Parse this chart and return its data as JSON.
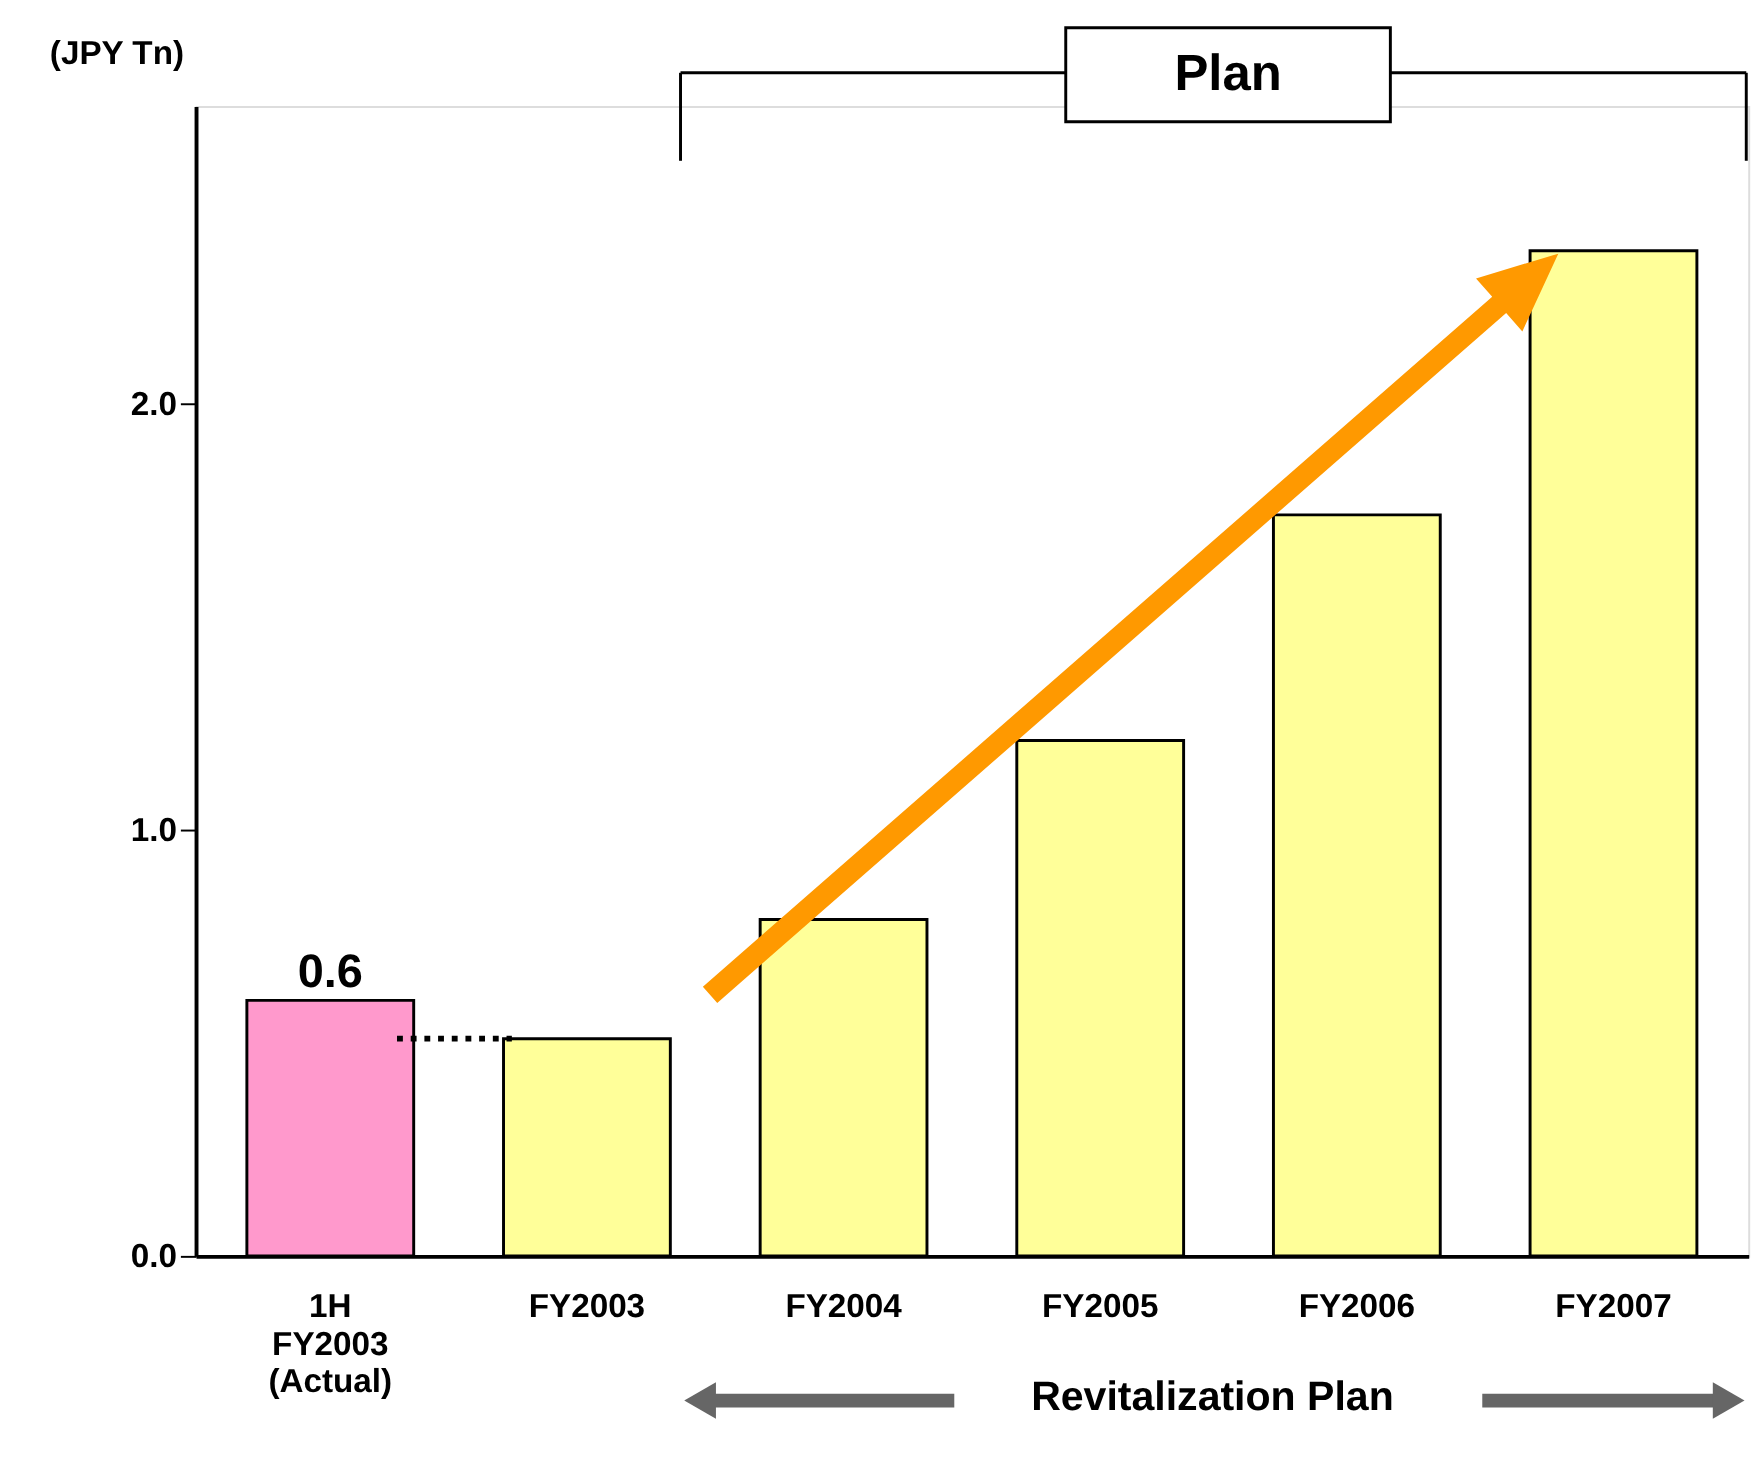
{
  "chart_data": {
    "type": "bar",
    "ylabel": "(JPY Tn)",
    "categories": [
      "1H FY2003 (Actual)",
      "FY2003",
      "FY2004",
      "FY2005",
      "FY2006",
      "FY2007"
    ],
    "values": [
      0.6,
      0.51,
      0.79,
      1.21,
      1.74,
      2.36
    ],
    "colors": [
      "#ff99cc",
      "#ffff99",
      "#ffff99",
      "#ffff99",
      "#ffff99",
      "#ffff99"
    ],
    "value_labels": [
      "0.6",
      null,
      null,
      null,
      null,
      null
    ],
    "ylim": [
      0,
      2.7
    ],
    "yticks": [
      {
        "value": 0,
        "label": "0.0"
      },
      {
        "value": 1,
        "label": "1.0"
      },
      {
        "value": 2,
        "label": "2.0"
      }
    ],
    "annotations": [
      "Plan",
      "Revitalization Plan"
    ],
    "grid": false,
    "legend": false
  }
}
